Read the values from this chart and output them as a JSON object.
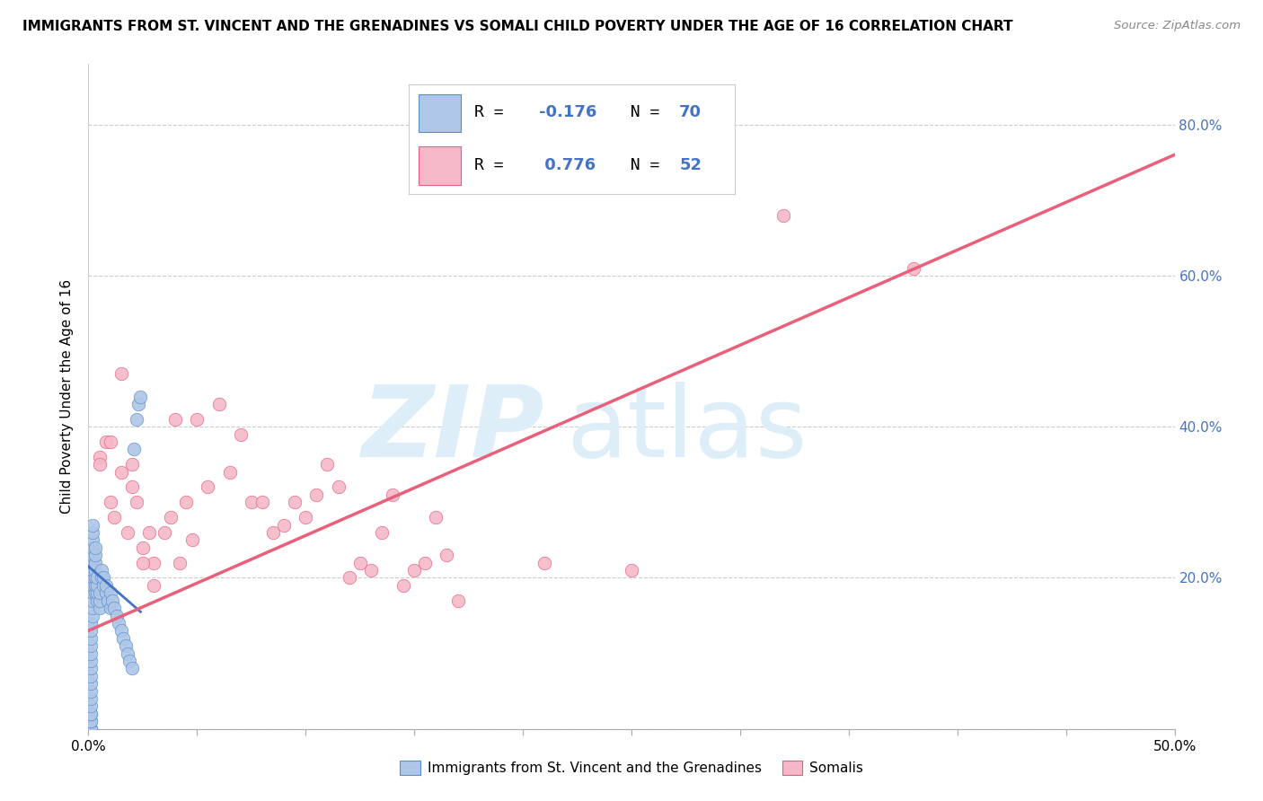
{
  "title": "IMMIGRANTS FROM ST. VINCENT AND THE GRENADINES VS SOMALI CHILD POVERTY UNDER THE AGE OF 16 CORRELATION CHART",
  "source": "Source: ZipAtlas.com",
  "ylabel": "Child Poverty Under the Age of 16",
  "xlim": [
    0.0,
    0.5
  ],
  "ylim": [
    0.0,
    0.88
  ],
  "color_blue_fill": "#aec6e8",
  "color_blue_edge": "#5b8ec4",
  "color_pink_fill": "#f5b8c8",
  "color_pink_edge": "#e06080",
  "color_line_blue": "#4472c4",
  "color_line_pink": "#e8607a",
  "color_refline": "#cccccc",
  "color_grid": "#cccccc",
  "color_watermark": "#ddeef8",
  "watermark_zip": "ZIP",
  "watermark_atlas": "atlas",
  "legend_label_1": "Immigrants from St. Vincent and the Grenadines",
  "legend_label_2": "Somalis",
  "R1": -0.176,
  "N1": 70,
  "R2": 0.776,
  "N2": 52,
  "blue_x": [
    0.001,
    0.001,
    0.001,
    0.001,
    0.001,
    0.001,
    0.001,
    0.001,
    0.001,
    0.001,
    0.001,
    0.001,
    0.001,
    0.001,
    0.001,
    0.001,
    0.001,
    0.001,
    0.001,
    0.001,
    0.002,
    0.002,
    0.002,
    0.002,
    0.002,
    0.002,
    0.002,
    0.002,
    0.002,
    0.002,
    0.002,
    0.002,
    0.002,
    0.003,
    0.003,
    0.003,
    0.003,
    0.003,
    0.003,
    0.003,
    0.004,
    0.004,
    0.004,
    0.004,
    0.005,
    0.005,
    0.005,
    0.006,
    0.006,
    0.007,
    0.007,
    0.008,
    0.008,
    0.009,
    0.01,
    0.01,
    0.011,
    0.012,
    0.013,
    0.014,
    0.015,
    0.016,
    0.017,
    0.018,
    0.019,
    0.02,
    0.021,
    0.022,
    0.023,
    0.024
  ],
  "blue_y": [
    0.0,
    0.0,
    0.0,
    0.0,
    0.01,
    0.01,
    0.02,
    0.02,
    0.03,
    0.04,
    0.05,
    0.06,
    0.07,
    0.08,
    0.09,
    0.1,
    0.11,
    0.12,
    0.13,
    0.14,
    0.15,
    0.16,
    0.17,
    0.18,
    0.19,
    0.2,
    0.21,
    0.22,
    0.23,
    0.24,
    0.25,
    0.26,
    0.27,
    0.18,
    0.19,
    0.2,
    0.21,
    0.22,
    0.23,
    0.24,
    0.17,
    0.18,
    0.19,
    0.2,
    0.16,
    0.17,
    0.18,
    0.2,
    0.21,
    0.19,
    0.2,
    0.18,
    0.19,
    0.17,
    0.16,
    0.18,
    0.17,
    0.16,
    0.15,
    0.14,
    0.13,
    0.12,
    0.11,
    0.1,
    0.09,
    0.08,
    0.37,
    0.41,
    0.43,
    0.44
  ],
  "pink_x": [
    0.005,
    0.008,
    0.01,
    0.012,
    0.015,
    0.018,
    0.02,
    0.022,
    0.025,
    0.028,
    0.03,
    0.035,
    0.038,
    0.04,
    0.042,
    0.045,
    0.048,
    0.05,
    0.055,
    0.06,
    0.065,
    0.07,
    0.075,
    0.08,
    0.085,
    0.09,
    0.095,
    0.1,
    0.105,
    0.11,
    0.115,
    0.12,
    0.125,
    0.13,
    0.135,
    0.14,
    0.145,
    0.15,
    0.155,
    0.16,
    0.165,
    0.17,
    0.21,
    0.25,
    0.005,
    0.01,
    0.015,
    0.02,
    0.025,
    0.03,
    0.32,
    0.38
  ],
  "pink_y": [
    0.36,
    0.38,
    0.3,
    0.28,
    0.34,
    0.26,
    0.35,
    0.3,
    0.24,
    0.26,
    0.22,
    0.26,
    0.28,
    0.41,
    0.22,
    0.3,
    0.25,
    0.41,
    0.32,
    0.43,
    0.34,
    0.39,
    0.3,
    0.3,
    0.26,
    0.27,
    0.3,
    0.28,
    0.31,
    0.35,
    0.32,
    0.2,
    0.22,
    0.21,
    0.26,
    0.31,
    0.19,
    0.21,
    0.22,
    0.28,
    0.23,
    0.17,
    0.22,
    0.21,
    0.35,
    0.38,
    0.47,
    0.32,
    0.22,
    0.19,
    0.68,
    0.61
  ],
  "blue_line_x": [
    0.0,
    0.024
  ],
  "blue_line_y": [
    0.215,
    0.155
  ],
  "pink_line_x": [
    0.0,
    0.5
  ],
  "pink_line_y": [
    0.13,
    0.76
  ],
  "ytick_positions": [
    0.0,
    0.2,
    0.4,
    0.6,
    0.8
  ],
  "ytick_labels_right": [
    "",
    "20.0%",
    "40.0%",
    "60.0%",
    "80.0%"
  ],
  "xtick_positions": [
    0.0,
    0.05,
    0.1,
    0.15,
    0.2,
    0.25,
    0.3,
    0.35,
    0.4,
    0.45,
    0.5
  ],
  "xtick_labels": [
    "0.0%",
    "",
    "",
    "",
    "",
    "",
    "",
    "",
    "",
    "",
    "50.0%"
  ]
}
